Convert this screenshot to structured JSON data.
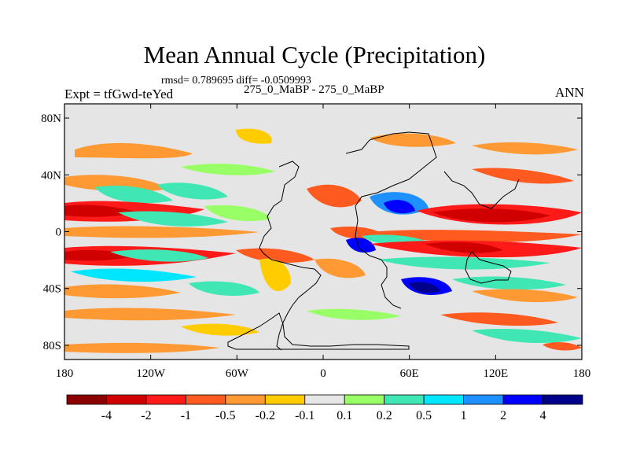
{
  "title": "Mean Annual Cycle (Precipitation)",
  "stats": "rmsd= 0.789695 diff= -0.0509993",
  "cases": "275_0_MaBP - 275_0_MaBP",
  "expt": "Expt = tfGwd-teYed",
  "season": "ANN",
  "map": {
    "lon_ticks": [
      "180",
      "120W",
      "60W",
      "0",
      "60E",
      "120E",
      "180"
    ],
    "lat_ticks": [
      "80N",
      "40N",
      "0",
      "40S",
      "80S"
    ],
    "background_color": "#e5e5e5",
    "land_outline_color": "#000000"
  },
  "colorbar": {
    "labels": [
      "-4",
      "-2",
      "-1",
      "-0.5",
      "-0.2",
      "-0.1",
      "0.1",
      "0.2",
      "0.5",
      "1",
      "2",
      "4"
    ],
    "colors": [
      "#8b0000",
      "#d10000",
      "#ff1a1a",
      "#ff5a1f",
      "#ff9933",
      "#ffcc00",
      "#e6e6e6",
      "#99ff66",
      "#40e6b3",
      "#00e6ff",
      "#1e90ff",
      "#0000ff",
      "#00008b"
    ]
  }
}
